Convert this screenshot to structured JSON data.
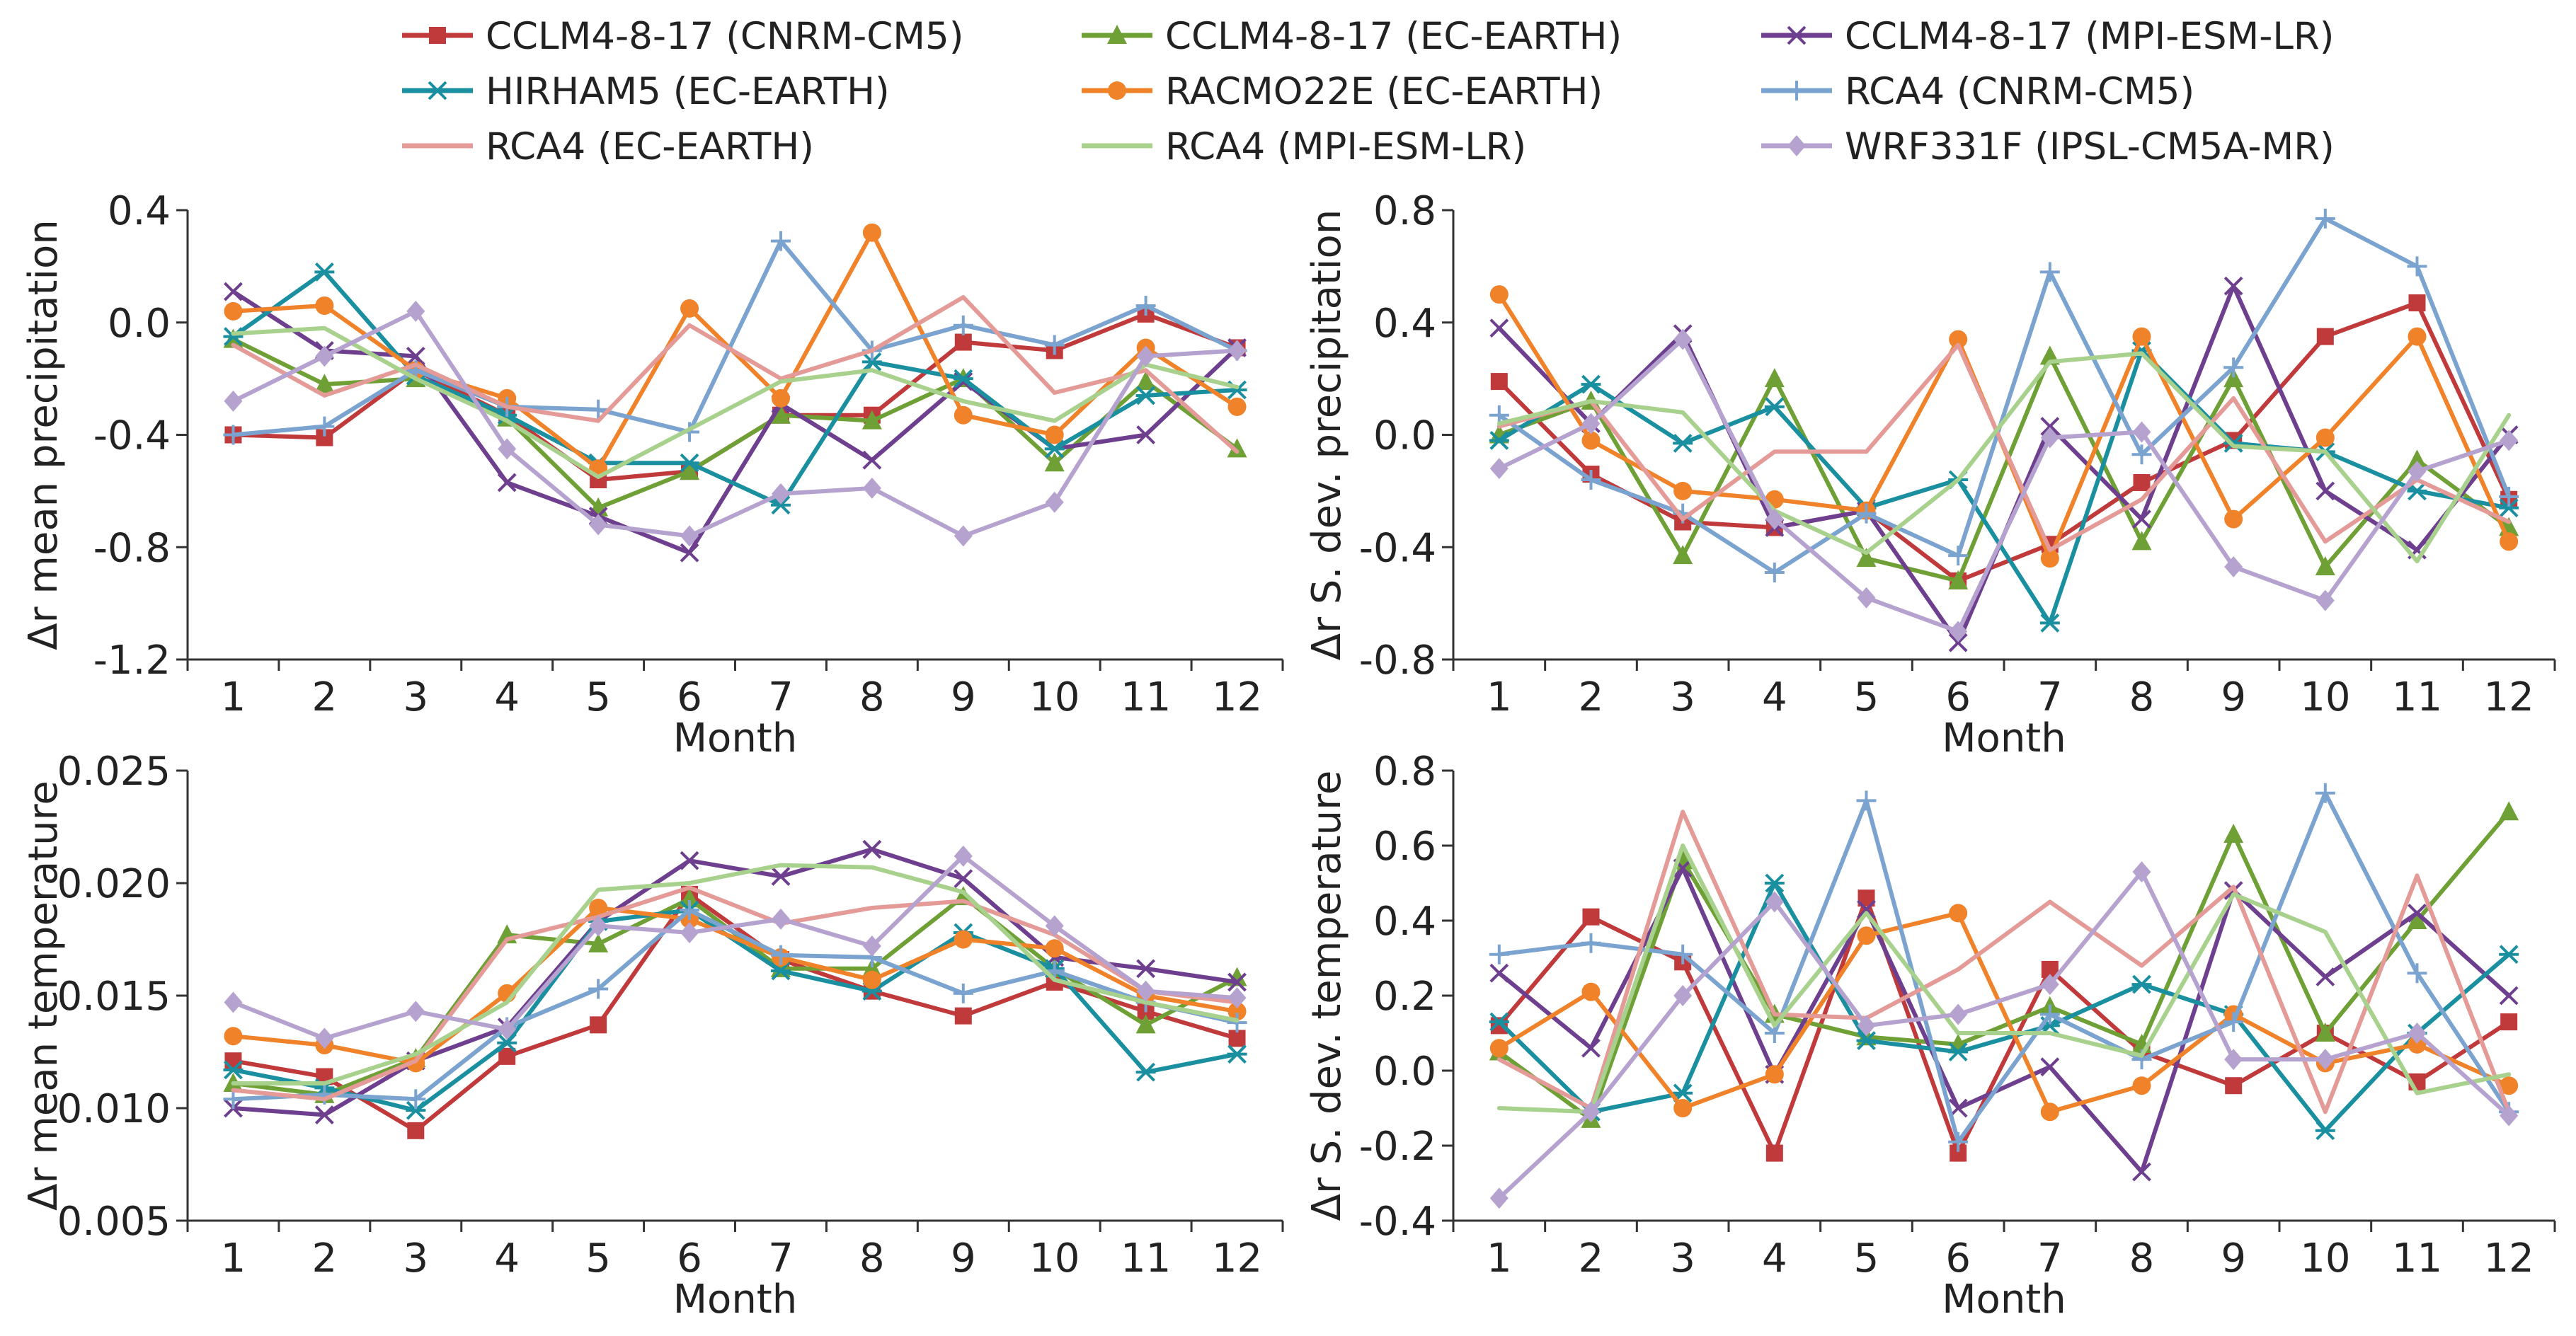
{
  "figure": {
    "legend": [
      {
        "name": "CCLM4-8-17 (CNRM-CM5)",
        "color": "#c0393b",
        "marker": "square"
      },
      {
        "name": "CCLM4-8-17 (EC-EARTH)",
        "color": "#6fa035",
        "marker": "triangle"
      },
      {
        "name": "CCLM4-8-17 (MPI-ESM-LR)",
        "color": "#6d3f8e",
        "marker": "x"
      },
      {
        "name": "HIRHAM5 (EC-EARTH)",
        "color": "#1a8fa0",
        "marker": "star"
      },
      {
        "name": "RACMO22E (EC-EARTH)",
        "color": "#f0822a",
        "marker": "circle"
      },
      {
        "name": "RCA4 (CNRM-CM5)",
        "color": "#7ba3cf",
        "marker": "plus"
      },
      {
        "name": "RCA4 (EC-EARTH)",
        "color": "#e49b98",
        "marker": "none"
      },
      {
        "name": "RCA4 (MPI-ESM-LR)",
        "color": "#a9d18e",
        "marker": "none"
      },
      {
        "name": "WRF331F (IPSL-CM5A-MR)",
        "color": "#b5a2cf",
        "marker": "diamond"
      }
    ]
  },
  "chart_data": [
    {
      "type": "line",
      "title": "",
      "xlabel": "Month",
      "ylabel": "Δr mean precipitation",
      "x": [
        1,
        2,
        3,
        4,
        5,
        6,
        7,
        8,
        9,
        10,
        11,
        12
      ],
      "xticks": [
        "1",
        "2",
        "3",
        "4",
        "5",
        "6",
        "7",
        "8",
        "9",
        "10",
        "11",
        "12"
      ],
      "ylim": [
        -1.2,
        0.4
      ],
      "yticks": [
        -1.2,
        -0.8,
        -0.4,
        0.0,
        0.4
      ],
      "ytick_labels": [
        "-1.2",
        "-0.8",
        "-0.4",
        "0.0",
        "0.4"
      ],
      "series": [
        {
          "name": "CCLM4-8-17 (CNRM-CM5)",
          "values": [
            -0.4,
            -0.41,
            -0.17,
            -0.33,
            -0.56,
            -0.53,
            -0.33,
            -0.33,
            -0.07,
            -0.1,
            0.03,
            -0.09
          ]
        },
        {
          "name": "CCLM4-8-17 (EC-EARTH)",
          "values": [
            -0.06,
            -0.22,
            -0.2,
            -0.34,
            -0.66,
            -0.53,
            -0.33,
            -0.35,
            -0.2,
            -0.5,
            -0.21,
            -0.45
          ]
        },
        {
          "name": "CCLM4-8-17 (MPI-ESM-LR)",
          "values": [
            0.11,
            -0.1,
            -0.12,
            -0.57,
            -0.69,
            -0.82,
            -0.29,
            -0.49,
            -0.21,
            -0.45,
            -0.4,
            -0.09
          ]
        },
        {
          "name": "HIRHAM5 (EC-EARTH)",
          "values": [
            -0.05,
            0.18,
            -0.19,
            -0.33,
            -0.5,
            -0.5,
            -0.65,
            -0.14,
            -0.2,
            -0.45,
            -0.26,
            -0.24
          ]
        },
        {
          "name": "RACMO22E (EC-EARTH)",
          "values": [
            0.04,
            0.06,
            -0.17,
            -0.27,
            -0.52,
            0.05,
            -0.27,
            0.32,
            -0.33,
            -0.4,
            -0.09,
            -0.3
          ]
        },
        {
          "name": "RCA4 (CNRM-CM5)",
          "values": [
            -0.4,
            -0.37,
            -0.17,
            -0.3,
            -0.31,
            -0.39,
            0.29,
            -0.1,
            -0.01,
            -0.08,
            0.06,
            -0.1
          ]
        },
        {
          "name": "RCA4 (EC-EARTH)",
          "values": [
            -0.08,
            -0.26,
            -0.15,
            -0.3,
            -0.35,
            -0.01,
            -0.2,
            -0.1,
            0.09,
            -0.25,
            -0.17,
            -0.46
          ]
        },
        {
          "name": "RCA4 (MPI-ESM-LR)",
          "values": [
            -0.04,
            -0.02,
            -0.2,
            -0.35,
            -0.55,
            -0.38,
            -0.21,
            -0.17,
            -0.28,
            -0.35,
            -0.15,
            -0.23
          ]
        },
        {
          "name": "WRF331F (IPSL-CM5A-MR)",
          "values": [
            -0.28,
            -0.12,
            0.04,
            -0.45,
            -0.72,
            -0.76,
            -0.61,
            -0.59,
            -0.76,
            -0.64,
            -0.12,
            -0.1
          ]
        }
      ]
    },
    {
      "type": "line",
      "title": "",
      "xlabel": "Month",
      "ylabel": "Δr S. dev. precipitation",
      "x": [
        1,
        2,
        3,
        4,
        5,
        6,
        7,
        8,
        9,
        10,
        11,
        12
      ],
      "xticks": [
        "1",
        "2",
        "3",
        "4",
        "5",
        "6",
        "7",
        "8",
        "9",
        "10",
        "11",
        "12"
      ],
      "ylim": [
        -0.8,
        0.8
      ],
      "yticks": [
        -0.8,
        -0.4,
        0.0,
        0.4,
        0.8
      ],
      "ytick_labels": [
        "-0.8",
        "-0.4",
        "0.0",
        "0.4",
        "0.8"
      ],
      "series": [
        {
          "name": "CCLM4-8-17 (CNRM-CM5)",
          "values": [
            0.19,
            -0.14,
            -0.31,
            -0.33,
            -0.27,
            -0.52,
            -0.39,
            -0.17,
            -0.02,
            0.35,
            0.47,
            -0.23
          ]
        },
        {
          "name": "CCLM4-8-17 (EC-EARTH)",
          "values": [
            0.0,
            0.12,
            -0.43,
            0.2,
            -0.44,
            -0.52,
            0.28,
            -0.38,
            0.2,
            -0.47,
            -0.09,
            -0.33
          ]
        },
        {
          "name": "CCLM4-8-17 (MPI-ESM-LR)",
          "values": [
            0.38,
            0.04,
            0.36,
            -0.33,
            -0.27,
            -0.74,
            0.03,
            -0.3,
            0.53,
            -0.2,
            -0.41,
            0.0
          ]
        },
        {
          "name": "HIRHAM5 (EC-EARTH)",
          "values": [
            -0.02,
            0.18,
            -0.03,
            0.1,
            -0.26,
            -0.16,
            -0.67,
            0.3,
            -0.03,
            -0.06,
            -0.2,
            -0.26
          ]
        },
        {
          "name": "RACMO22E (EC-EARTH)",
          "values": [
            0.5,
            -0.02,
            -0.2,
            -0.23,
            -0.27,
            0.34,
            -0.44,
            0.35,
            -0.3,
            -0.01,
            0.35,
            -0.38
          ]
        },
        {
          "name": "RCA4 (CNRM-CM5)",
          "values": [
            0.07,
            -0.16,
            -0.28,
            -0.49,
            -0.28,
            -0.43,
            0.58,
            -0.07,
            0.24,
            0.77,
            0.6,
            -0.22
          ]
        },
        {
          "name": "RCA4 (EC-EARTH)",
          "values": [
            0.03,
            0.12,
            -0.3,
            -0.06,
            -0.06,
            0.32,
            -0.41,
            -0.23,
            0.13,
            -0.38,
            -0.16,
            -0.31
          ]
        },
        {
          "name": "RCA4 (MPI-ESM-LR)",
          "values": [
            0.04,
            0.12,
            0.08,
            -0.27,
            -0.42,
            -0.16,
            0.26,
            0.29,
            -0.04,
            -0.06,
            -0.45,
            0.07
          ]
        },
        {
          "name": "WRF331F (IPSL-CM5A-MR)",
          "values": [
            -0.12,
            0.04,
            0.34,
            -0.3,
            -0.58,
            -0.7,
            -0.01,
            0.01,
            -0.47,
            -0.59,
            -0.13,
            -0.02
          ]
        }
      ]
    },
    {
      "type": "line",
      "title": "",
      "xlabel": "Month",
      "ylabel": "Δr mean temperature",
      "x": [
        1,
        2,
        3,
        4,
        5,
        6,
        7,
        8,
        9,
        10,
        11,
        12
      ],
      "xticks": [
        "1",
        "2",
        "3",
        "4",
        "5",
        "6",
        "7",
        "8",
        "9",
        "10",
        "11",
        "12"
      ],
      "ylim": [
        0.005,
        0.025
      ],
      "yticks": [
        0.005,
        0.01,
        0.015,
        0.02,
        0.025
      ],
      "ytick_labels": [
        "0.005",
        "0.010",
        "0.015",
        "0.020",
        "0.025"
      ],
      "series": [
        {
          "name": "CCLM4-8-17 (CNRM-CM5)",
          "values": [
            0.0121,
            0.0114,
            0.009,
            0.0123,
            0.0137,
            0.0195,
            0.0166,
            0.0152,
            0.0141,
            0.0156,
            0.0143,
            0.0131
          ]
        },
        {
          "name": "CCLM4-8-17 (EC-EARTH)",
          "values": [
            0.0111,
            0.0106,
            0.0122,
            0.0177,
            0.0173,
            0.0193,
            0.0162,
            0.0162,
            0.0194,
            0.0162,
            0.0137,
            0.0158
          ]
        },
        {
          "name": "CCLM4-8-17 (MPI-ESM-LR)",
          "values": [
            0.01,
            0.0097,
            0.0121,
            0.0136,
            0.0183,
            0.021,
            0.0203,
            0.0215,
            0.0202,
            0.0167,
            0.0162,
            0.0156
          ]
        },
        {
          "name": "HIRHAM5 (EC-EARTH)",
          "values": [
            0.0117,
            0.0109,
            0.0099,
            0.0129,
            0.0183,
            0.0188,
            0.0161,
            0.0152,
            0.0178,
            0.0162,
            0.0116,
            0.0124
          ]
        },
        {
          "name": "RACMO22E (EC-EARTH)",
          "values": [
            0.0132,
            0.0128,
            0.012,
            0.0151,
            0.0189,
            0.0184,
            0.0167,
            0.0157,
            0.0175,
            0.0171,
            0.015,
            0.0143
          ]
        },
        {
          "name": "RCA4 (CNRM-CM5)",
          "values": [
            0.0104,
            0.0106,
            0.0104,
            0.0136,
            0.0153,
            0.0188,
            0.0168,
            0.0167,
            0.0151,
            0.0161,
            0.0147,
            0.0138
          ]
        },
        {
          "name": "RCA4 (EC-EARTH)",
          "values": [
            0.0108,
            0.0104,
            0.0121,
            0.0175,
            0.0185,
            0.0198,
            0.0182,
            0.0189,
            0.0192,
            0.0177,
            0.0152,
            0.0147
          ]
        },
        {
          "name": "RCA4 (MPI-ESM-LR)",
          "values": [
            0.0111,
            0.0111,
            0.0124,
            0.0147,
            0.0197,
            0.02,
            0.0208,
            0.0207,
            0.0196,
            0.0157,
            0.0147,
            0.0139
          ]
        },
        {
          "name": "WRF331F (IPSL-CM5A-MR)",
          "values": [
            0.0147,
            0.0131,
            0.0143,
            0.0135,
            0.0181,
            0.0178,
            0.0184,
            0.0172,
            0.0212,
            0.0181,
            0.0152,
            0.0149
          ]
        }
      ]
    },
    {
      "type": "line",
      "title": "",
      "xlabel": "Month",
      "ylabel": "Δr S. dev. temperature",
      "x": [
        1,
        2,
        3,
        4,
        5,
        6,
        7,
        8,
        9,
        10,
        11,
        12
      ],
      "xticks": [
        "1",
        "2",
        "3",
        "4",
        "5",
        "6",
        "7",
        "8",
        "9",
        "10",
        "11",
        "12"
      ],
      "ylim": [
        -0.4,
        0.8
      ],
      "yticks": [
        -0.4,
        -0.2,
        0.0,
        0.2,
        0.4,
        0.6,
        0.8
      ],
      "ytick_labels": [
        "-0.4",
        "-0.2",
        "0.0",
        "0.2",
        "0.4",
        "0.6",
        "0.8"
      ],
      "series": [
        {
          "name": "CCLM4-8-17 (CNRM-CM5)",
          "values": [
            0.12,
            0.41,
            0.29,
            -0.22,
            0.46,
            -0.22,
            0.27,
            0.05,
            -0.04,
            0.1,
            -0.03,
            0.13
          ]
        },
        {
          "name": "CCLM4-8-17 (EC-EARTH)",
          "values": [
            0.05,
            -0.13,
            0.56,
            0.15,
            0.09,
            0.07,
            0.17,
            0.07,
            0.63,
            0.1,
            0.4,
            0.69
          ]
        },
        {
          "name": "CCLM4-8-17 (MPI-ESM-LR)",
          "values": [
            0.26,
            0.06,
            0.54,
            -0.01,
            0.43,
            -0.1,
            0.01,
            -0.27,
            0.48,
            0.25,
            0.42,
            0.2
          ]
        },
        {
          "name": "HIRHAM5 (EC-EARTH)",
          "values": [
            0.13,
            -0.11,
            -0.06,
            0.5,
            0.08,
            0.05,
            0.12,
            0.23,
            0.15,
            -0.16,
            0.1,
            0.31
          ]
        },
        {
          "name": "RACMO22E (EC-EARTH)",
          "values": [
            0.06,
            0.21,
            -0.1,
            -0.01,
            0.36,
            0.42,
            -0.11,
            -0.04,
            0.15,
            0.02,
            0.07,
            -0.04
          ]
        },
        {
          "name": "RCA4 (CNRM-CM5)",
          "values": [
            0.31,
            0.34,
            0.31,
            0.1,
            0.72,
            -0.19,
            0.15,
            0.03,
            0.13,
            0.74,
            0.26,
            -0.11
          ]
        },
        {
          "name": "RCA4 (EC-EARTH)",
          "values": [
            0.03,
            -0.1,
            0.69,
            0.15,
            0.14,
            0.27,
            0.45,
            0.28,
            0.49,
            -0.11,
            0.52,
            -0.11
          ]
        },
        {
          "name": "RCA4 (MPI-ESM-LR)",
          "values": [
            -0.1,
            -0.11,
            0.6,
            0.12,
            0.42,
            0.1,
            0.1,
            0.04,
            0.47,
            0.37,
            -0.06,
            -0.01
          ]
        },
        {
          "name": "WRF331F (IPSL-CM5A-MR)",
          "values": [
            -0.34,
            -0.11,
            0.2,
            0.45,
            0.12,
            0.15,
            0.23,
            0.53,
            0.03,
            0.03,
            0.1,
            -0.12
          ]
        }
      ]
    }
  ]
}
